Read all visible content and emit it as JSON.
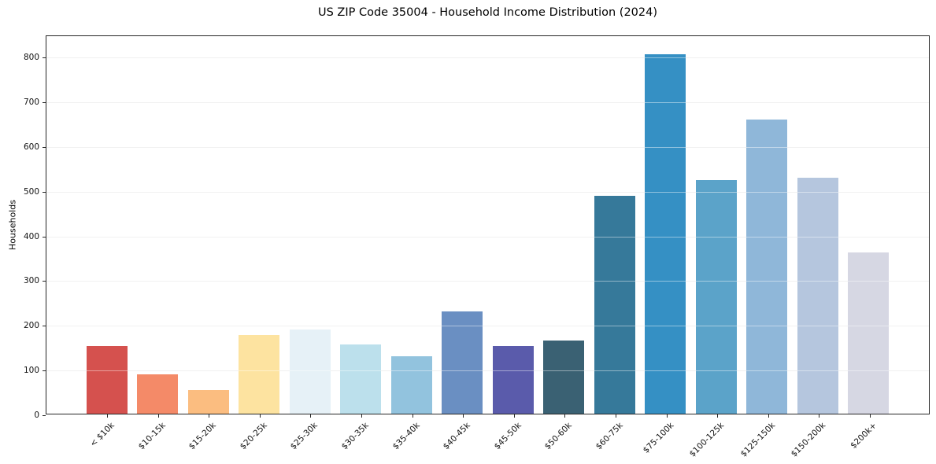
{
  "title": "US ZIP Code 35004 - Household Income Distribution (2024)",
  "chart_data": {
    "type": "bar",
    "title": "US ZIP Code 35004 - Household Income Distribution (2024)",
    "xlabel": "",
    "ylabel": "Households",
    "categories": [
      "< $10k",
      "$10-15k",
      "$15-20k",
      "$20-25k",
      "$25-30k",
      "$30-35k",
      "$35-40k",
      "$40-45k",
      "$45-50k",
      "$50-60k",
      "$60-75k",
      "$75-100k",
      "$100-125k",
      "$125-150k",
      "$150-200k",
      "$200k+"
    ],
    "values": [
      152,
      89,
      53,
      176,
      189,
      156,
      129,
      229,
      152,
      165,
      490,
      808,
      525,
      660,
      530,
      363
    ],
    "bar_colors": [
      "#d5514e",
      "#f48a68",
      "#fbbd80",
      "#fde3a0",
      "#e6f1f7",
      "#bce0ec",
      "#92c3de",
      "#6a8fc2",
      "#5a5bab",
      "#3a6173",
      "#36799a",
      "#3590c4",
      "#5ba3c9",
      "#8fb7d9",
      "#b5c6de",
      "#d6d7e3"
    ],
    "yticks": [
      0,
      100,
      200,
      300,
      400,
      500,
      600,
      700,
      800
    ],
    "ylim": [
      0,
      848
    ],
    "grid": "horizontal",
    "legend_position": "none"
  },
  "colors": {
    "background": "#ffffff",
    "grid": "#e5e5e5",
    "spine": "#262626",
    "text": "#000000"
  }
}
